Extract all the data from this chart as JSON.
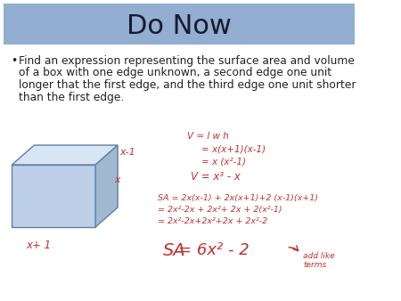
{
  "title": "Do Now",
  "title_bg_color": "#92aed0",
  "title_font_size": 22,
  "title_color": "#1a1a2e",
  "body_text_line1": "Find an expression representing the surface area and volume",
  "body_text_line2": "of a box with one edge unknown, a second edge one unit",
  "body_text_line3": "longer that the first edge, and the third edge one unit shorter",
  "body_text_line4": "than the first edge.",
  "bullet": "•",
  "handwriting_color": "#c03030",
  "bg_color": "#ffffff",
  "box_face_color": "#bdd0e8",
  "box_edge_color": "#6080a8",
  "box_top_color": "#d8e5f2",
  "box_side_color": "#a0b8d0",
  "label_x1": "x-1",
  "label_x2": "x",
  "label_x3": "x+ 1",
  "v_line1": "V = l w h",
  "v_line2": "= x(x+1)(x-1)",
  "v_line3": "= x (x²-1)",
  "v_line4": "V = x³ - x",
  "sa_line1": "SA = 2x(x-1) + 2x(x+1)+2 (x-1)(x+1)",
  "sa_line2": "= 2x²-2x + 2x²+ 2x + 2(x²-1)",
  "sa_line3": "= 2x²-2x+2x²+2x + 2x²-2",
  "sa_final": "= 6x² - 2",
  "sa_label": "SA",
  "add_like_terms": "add like\nterms"
}
